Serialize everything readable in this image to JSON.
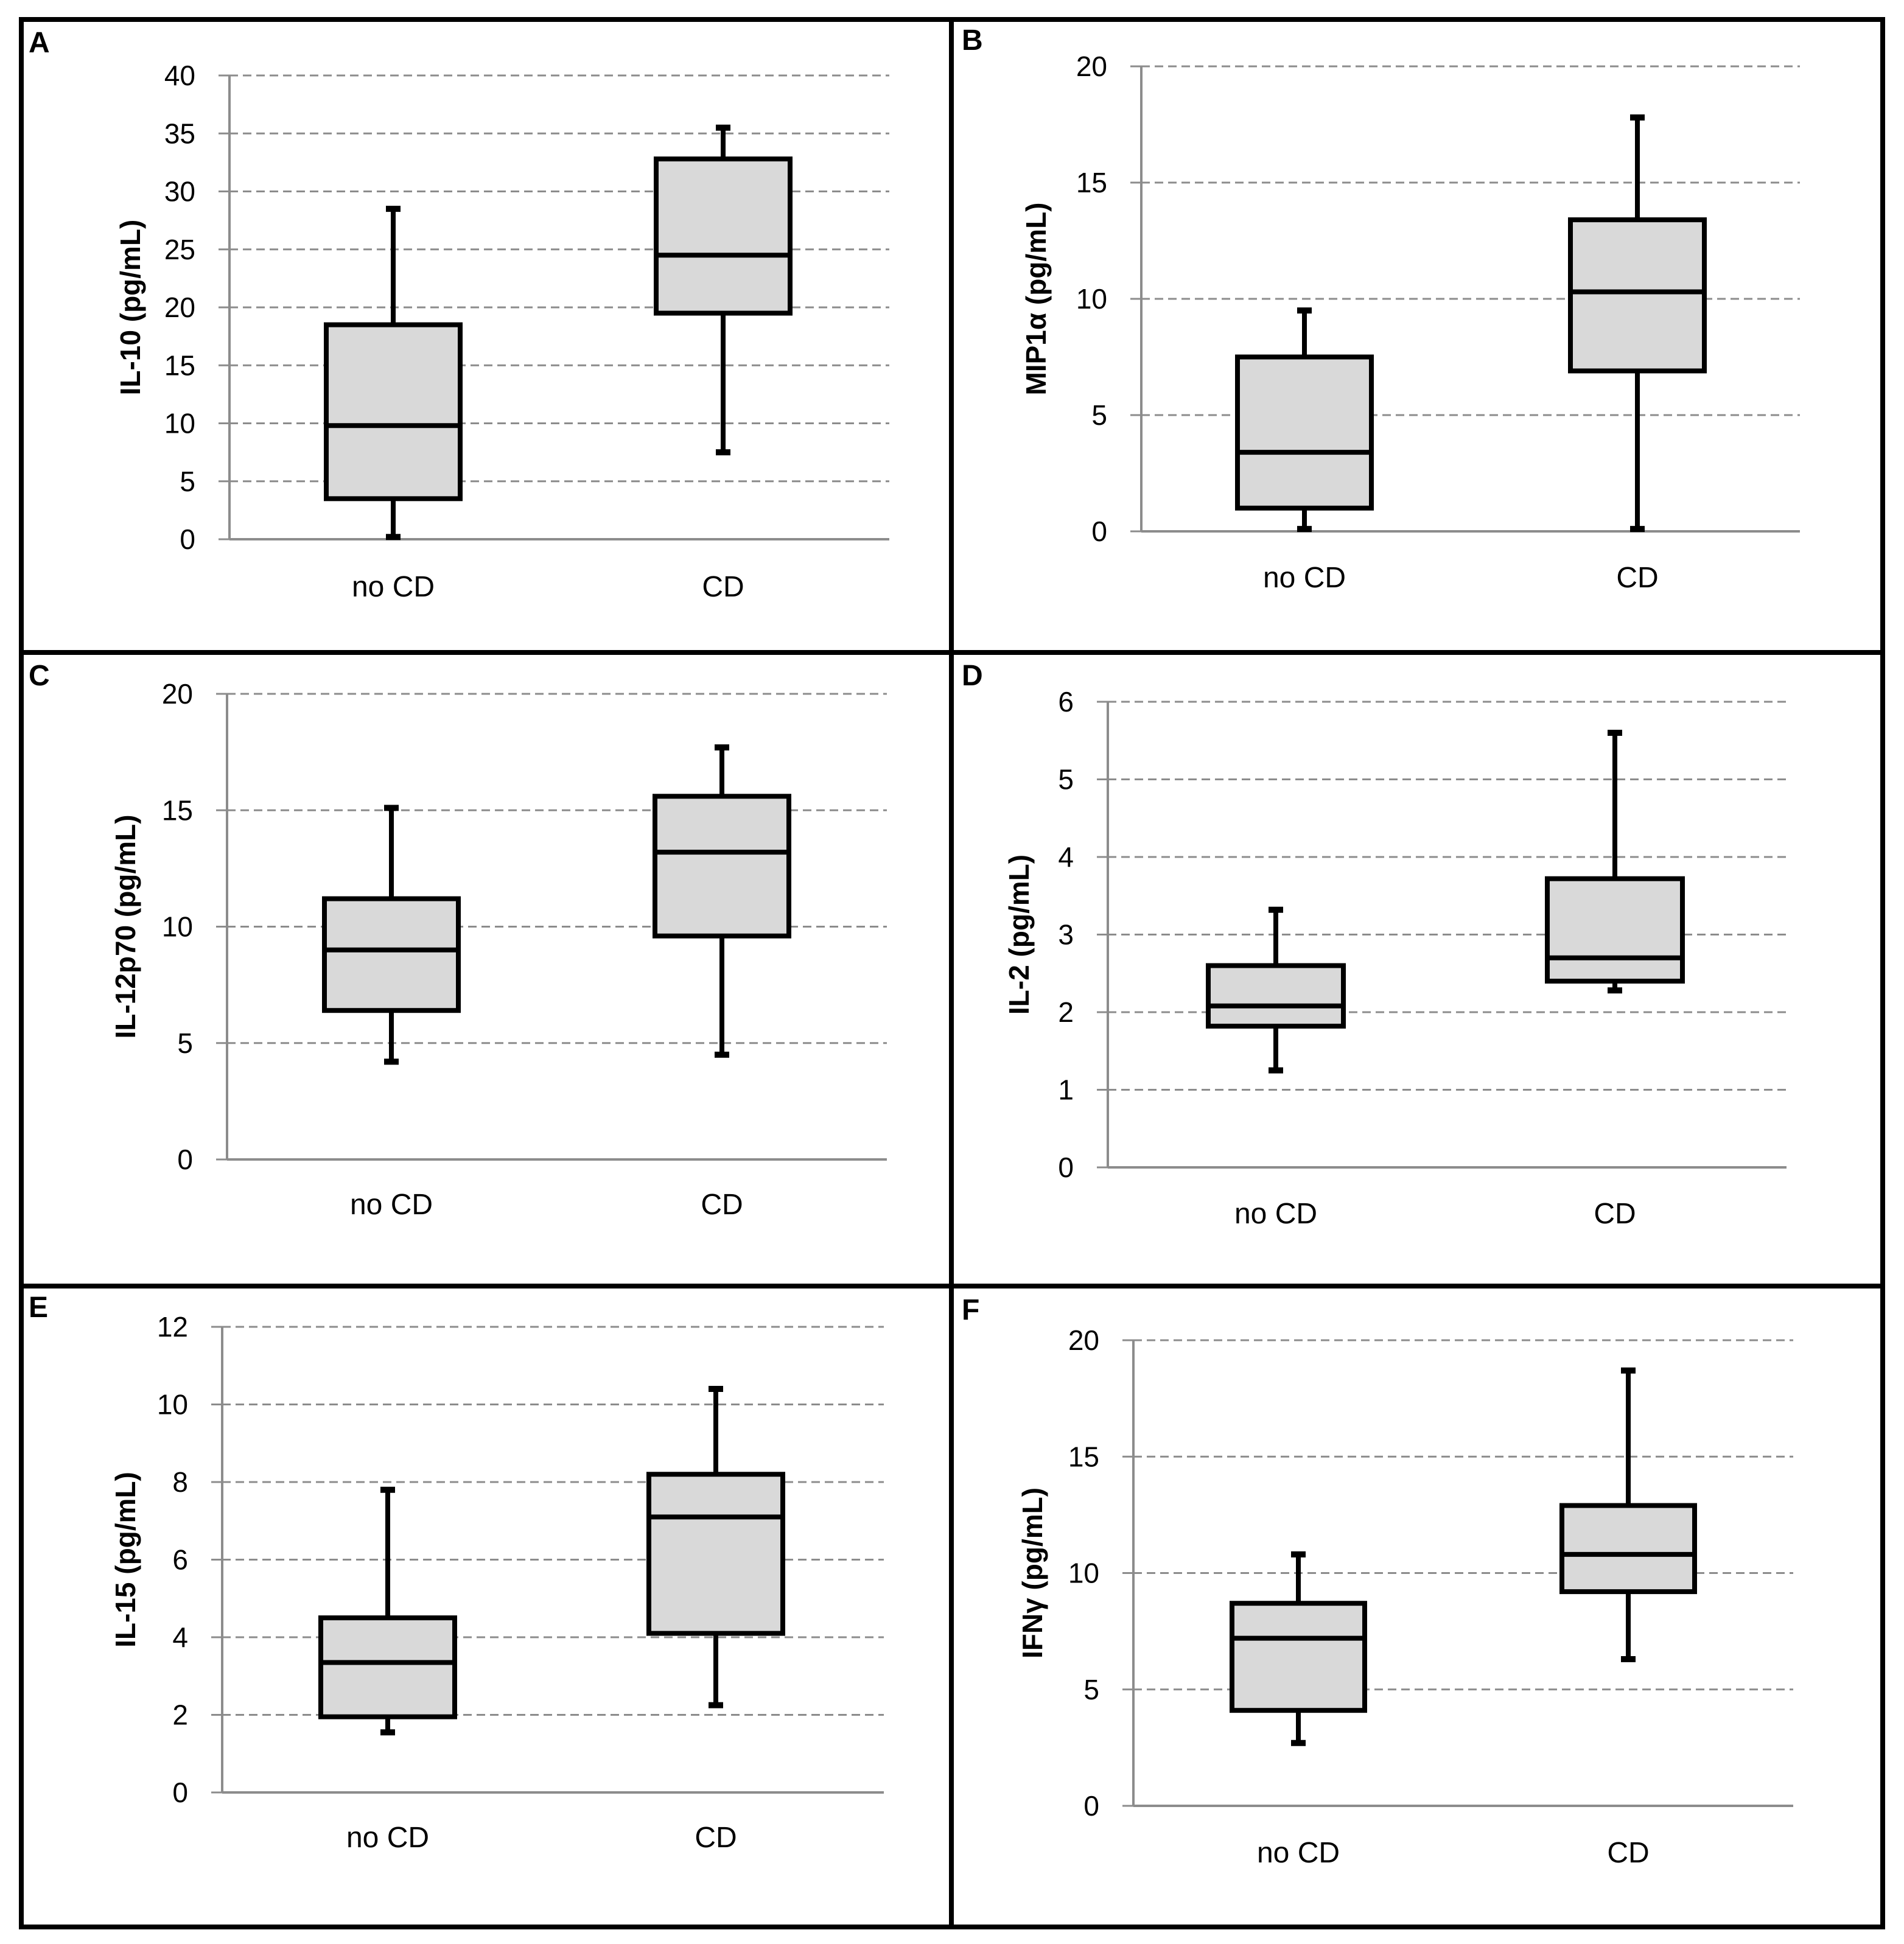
{
  "figure": {
    "background": "#ffffff",
    "frame_color": "#000000",
    "box_fill": "#d9d9d9",
    "grid_color": "#8c8c8c",
    "axis_color": "#8c8c8c"
  },
  "chart_data": [
    {
      "panel": "A",
      "type": "boxplot",
      "ylabel": "IL-10 (pg/mL)",
      "ylim": [
        0,
        40
      ],
      "yticks": [
        0,
        5,
        10,
        15,
        20,
        25,
        30,
        35,
        40
      ],
      "categories": [
        "no CD",
        "CD"
      ],
      "boxes": [
        {
          "category": "no CD",
          "min": 0.2,
          "q1": 3.5,
          "median": 9.8,
          "q3": 18.5,
          "max": 28.5
        },
        {
          "category": "CD",
          "min": 7.5,
          "q1": 19.5,
          "median": 24.5,
          "q3": 32.8,
          "max": 35.5
        }
      ],
      "grid": "dashed horizontal"
    },
    {
      "panel": "B",
      "type": "boxplot",
      "ylabel": "MIP1α (pg/mL)",
      "ylim": [
        0,
        20
      ],
      "yticks": [
        0,
        5,
        10,
        15,
        20
      ],
      "categories": [
        "no CD",
        "CD"
      ],
      "boxes": [
        {
          "category": "no CD",
          "min": 0.1,
          "q1": 1.0,
          "median": 3.4,
          "q3": 7.5,
          "max": 9.5
        },
        {
          "category": "CD",
          "min": 0.1,
          "q1": 6.9,
          "median": 10.3,
          "q3": 13.4,
          "max": 17.8
        }
      ],
      "grid": "dashed horizontal"
    },
    {
      "panel": "C",
      "type": "boxplot",
      "ylabel": "IL-12p70 (pg/mL)",
      "ylim": [
        0,
        20
      ],
      "yticks": [
        0,
        5,
        10,
        15,
        20
      ],
      "categories": [
        "no CD",
        "CD"
      ],
      "boxes": [
        {
          "category": "no CD",
          "min": 4.2,
          "q1": 6.4,
          "median": 9.0,
          "q3": 11.2,
          "max": 15.1
        },
        {
          "category": "CD",
          "min": 4.5,
          "q1": 9.6,
          "median": 13.2,
          "q3": 15.6,
          "max": 17.7
        }
      ],
      "grid": "dashed horizontal"
    },
    {
      "panel": "D",
      "type": "boxplot",
      "ylabel": "IL-2 (pg/mL)",
      "ylim": [
        0,
        6
      ],
      "yticks": [
        0,
        1,
        2,
        3,
        4,
        5,
        6
      ],
      "categories": [
        "no CD",
        "CD"
      ],
      "boxes": [
        {
          "category": "no CD",
          "min": 1.25,
          "q1": 1.82,
          "median": 2.08,
          "q3": 2.6,
          "max": 3.32
        },
        {
          "category": "CD",
          "min": 2.28,
          "q1": 2.4,
          "median": 2.7,
          "q3": 3.72,
          "max": 5.6
        }
      ],
      "grid": "dashed horizontal"
    },
    {
      "panel": "E",
      "type": "boxplot",
      "ylabel": "IL-15 (pg/mL)",
      "ylim": [
        0,
        12
      ],
      "yticks": [
        0,
        2,
        4,
        6,
        8,
        10,
        12
      ],
      "categories": [
        "no CD",
        "CD"
      ],
      "boxes": [
        {
          "category": "no CD",
          "min": 1.55,
          "q1": 1.95,
          "median": 3.35,
          "q3": 4.5,
          "max": 7.8
        },
        {
          "category": "CD",
          "min": 2.25,
          "q1": 4.1,
          "median": 7.1,
          "q3": 8.2,
          "max": 10.4
        }
      ],
      "grid": "dashed horizontal"
    },
    {
      "panel": "F",
      "type": "boxplot",
      "ylabel": "IFNγ (pg/mL)",
      "ylim": [
        0,
        20
      ],
      "yticks": [
        0,
        5,
        10,
        15,
        20
      ],
      "categories": [
        "no CD",
        "CD"
      ],
      "boxes": [
        {
          "category": "no CD",
          "min": 2.7,
          "q1": 4.1,
          "median": 7.2,
          "q3": 8.7,
          "max": 10.8
        },
        {
          "category": "CD",
          "min": 6.3,
          "q1": 9.2,
          "median": 10.8,
          "q3": 12.9,
          "max": 18.7
        }
      ],
      "grid": "dashed horizontal"
    }
  ]
}
